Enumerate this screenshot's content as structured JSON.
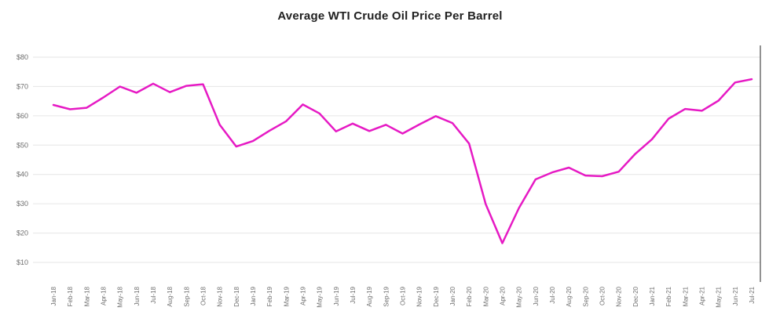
{
  "chart_data": {
    "type": "line",
    "title": "Average WTI Crude Oil Price Per Barrel",
    "xlabel": "",
    "ylabel": "",
    "categories": [
      "Jan-18",
      "Feb-18",
      "Mar-18",
      "Apr-18",
      "May-18",
      "Jun-18",
      "Jul-18",
      "Aug-18",
      "Sep-18",
      "Oct-18",
      "Nov-18",
      "Dec-18",
      "Jan-19",
      "Feb-19",
      "Mar-19",
      "Apr-19",
      "May-19",
      "Jun-19",
      "Jul-19",
      "Aug-19",
      "Sep-19",
      "Oct-19",
      "Nov-19",
      "Dec-19",
      "Jan-20",
      "Feb-20",
      "Mar-20",
      "Apr-20",
      "May-20",
      "Jun-20",
      "Jul-20",
      "Aug-20",
      "Sep-20",
      "Oct-20",
      "Nov-20",
      "Dec-20",
      "Jan-21",
      "Feb-21",
      "Mar-21",
      "Apr-21",
      "May-21",
      "Jun-21",
      "Jul-21"
    ],
    "values": [
      63.7,
      62.23,
      62.73,
      66.25,
      69.98,
      67.87,
      70.98,
      68.06,
      70.23,
      70.75,
      56.96,
      49.52,
      51.38,
      54.95,
      58.15,
      63.86,
      60.83,
      54.66,
      57.35,
      54.81,
      56.95,
      53.96,
      57.03,
      59.88,
      57.52,
      50.54,
      29.9,
      16.55,
      28.56,
      38.31,
      40.71,
      42.34,
      39.63,
      39.4,
      40.94,
      47.02,
      52.0,
      59.04,
      62.33,
      61.72,
      65.17,
      71.38,
      72.49
    ],
    "yticks": [
      10,
      20,
      30,
      40,
      50,
      60,
      70,
      80
    ],
    "ytick_prefix": "$",
    "ylim": [
      3,
      84
    ],
    "grid": "horizontal",
    "legend": "none",
    "line_color": "#E61AC4"
  },
  "colors": {
    "line": "#E61AC4",
    "grid": "#e6e6e6",
    "axis": "#4a4a4a",
    "tick_text": "#6e6e6e",
    "title_text": "#212121",
    "background": "#ffffff"
  }
}
